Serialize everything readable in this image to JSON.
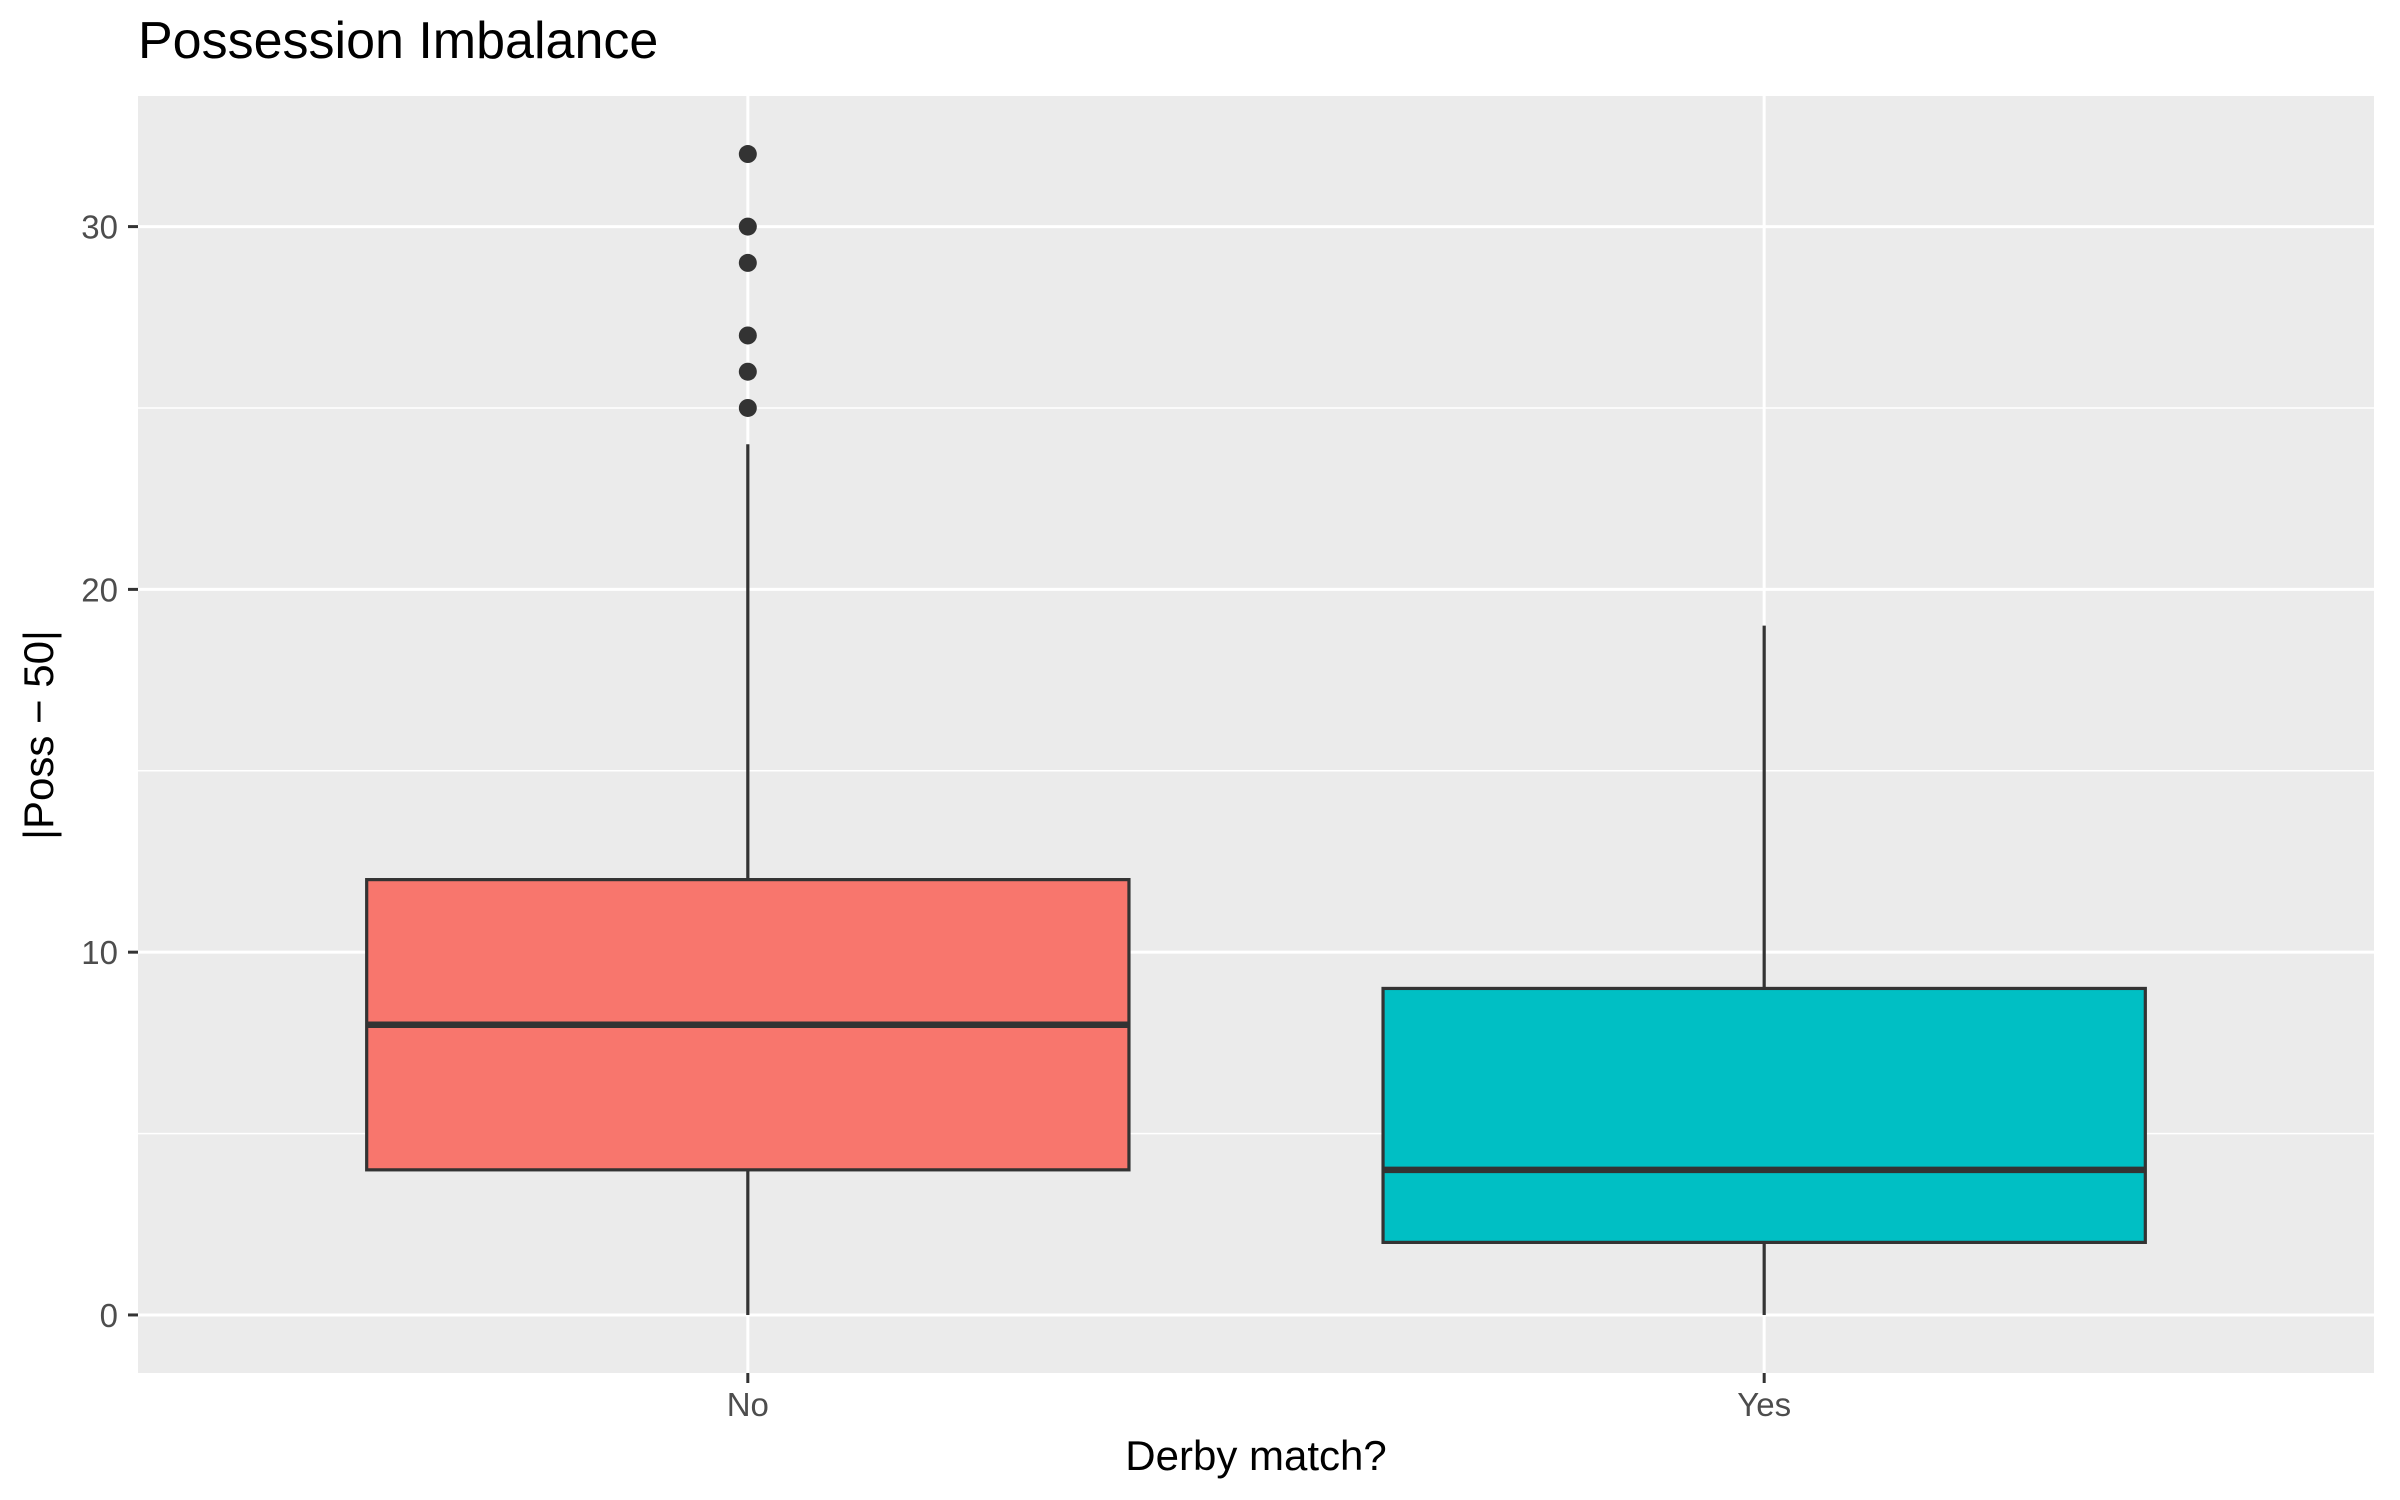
{
  "chart_data": {
    "type": "boxplot",
    "title": "Possession Imbalance",
    "xlabel": "Derby match?",
    "ylabel": "|Poss − 50|",
    "categories": [
      "No",
      "Yes"
    ],
    "ylim": [
      -1.6,
      33.6
    ],
    "yticks": [
      0,
      10,
      20,
      30
    ],
    "grid": true,
    "legend": "none",
    "boxes": [
      {
        "category": "No",
        "min": 0,
        "q1": 4,
        "median": 8,
        "q3": 12,
        "max": 24,
        "outliers": [
          25,
          26,
          27,
          29,
          30,
          32
        ],
        "fill": "#F8766D"
      },
      {
        "category": "Yes",
        "min": 0,
        "q1": 2,
        "median": 4,
        "q3": 9,
        "max": 19,
        "outliers": [],
        "fill": "#00BFC4"
      }
    ]
  },
  "colors": {
    "panel_background": "#EBEBEB",
    "grid": "#FFFFFF",
    "box_outline": "#333333",
    "outlier": "#333333"
  }
}
